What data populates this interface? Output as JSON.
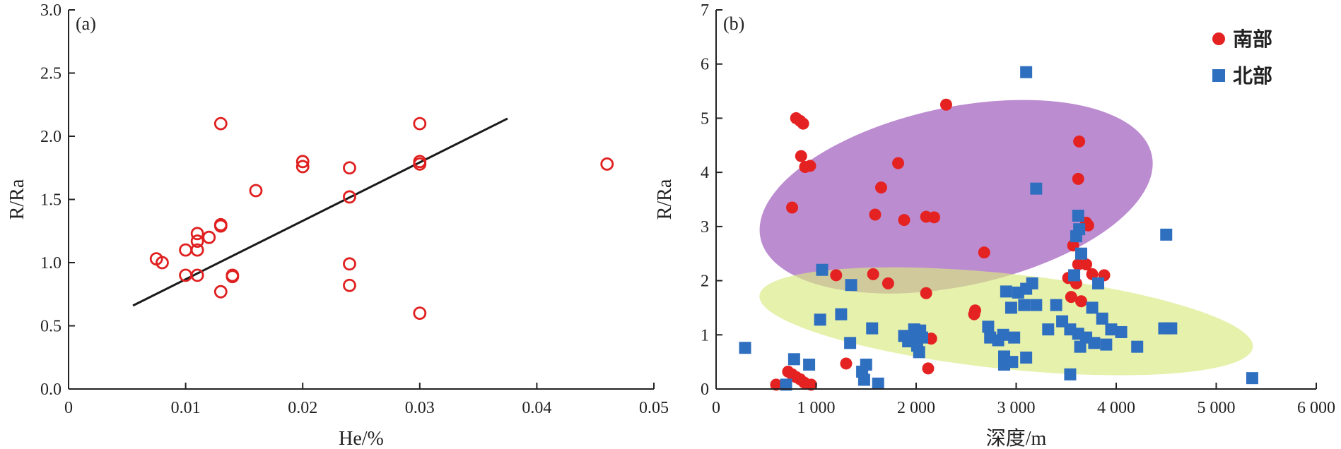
{
  "chart_data": [
    {
      "type": "scatter",
      "panel_label": "(a)",
      "xlabel": "He/%",
      "ylabel": "R/Ra",
      "xlim": [
        0,
        0.05
      ],
      "ylim": [
        0,
        3.0
      ],
      "xticks": [
        {
          "value": 0,
          "label": "0"
        },
        {
          "value": 0.01,
          "label": "0.01"
        },
        {
          "value": 0.02,
          "label": "0.02"
        },
        {
          "value": 0.03,
          "label": "0.03"
        },
        {
          "value": 0.04,
          "label": "0.04"
        },
        {
          "value": 0.05,
          "label": "0.05"
        }
      ],
      "yticks": [
        {
          "value": 0,
          "label": "0.0"
        },
        {
          "value": 0.5,
          "label": "0.5"
        },
        {
          "value": 1.0,
          "label": "1.0"
        },
        {
          "value": 1.5,
          "label": "1.5"
        },
        {
          "value": 2.0,
          "label": "2.0"
        },
        {
          "value": 2.5,
          "label": "2.5"
        },
        {
          "value": 3.0,
          "label": "3.0"
        }
      ],
      "marker_color": "#e02020",
      "points": [
        [
          0.0075,
          1.03
        ],
        [
          0.008,
          1.0
        ],
        [
          0.01,
          1.1
        ],
        [
          0.01,
          0.9
        ],
        [
          0.011,
          1.23
        ],
        [
          0.011,
          1.17
        ],
        [
          0.011,
          1.1
        ],
        [
          0.011,
          0.9
        ],
        [
          0.012,
          1.2
        ],
        [
          0.013,
          1.3
        ],
        [
          0.013,
          1.29
        ],
        [
          0.013,
          2.1
        ],
        [
          0.013,
          0.77
        ],
        [
          0.014,
          0.9
        ],
        [
          0.014,
          0.89
        ],
        [
          0.016,
          1.57
        ],
        [
          0.02,
          1.8
        ],
        [
          0.02,
          1.76
        ],
        [
          0.024,
          1.75
        ],
        [
          0.024,
          1.52
        ],
        [
          0.024,
          0.99
        ],
        [
          0.024,
          0.82
        ],
        [
          0.03,
          2.1
        ],
        [
          0.03,
          1.8
        ],
        [
          0.03,
          1.78
        ],
        [
          0.03,
          0.6
        ],
        [
          0.046,
          1.78
        ]
      ],
      "trendline": {
        "x": [
          0.0055,
          0.0375
        ],
        "y": [
          0.66,
          2.14
        ],
        "color": "#1a1a1a"
      }
    },
    {
      "type": "scatter",
      "panel_label": "(b)",
      "xlabel": "深度/m",
      "ylabel": "R/Ra",
      "xlim": [
        0,
        6000
      ],
      "ylim": [
        0,
        7
      ],
      "xticks": [
        {
          "value": 0,
          "label": "0"
        },
        {
          "value": 1000,
          "label": "1 000"
        },
        {
          "value": 2000,
          "label": "2 000"
        },
        {
          "value": 3000,
          "label": "3 000"
        },
        {
          "value": 4000,
          "label": "4 000"
        },
        {
          "value": 5000,
          "label": "5 000"
        },
        {
          "value": 6000,
          "label": "6 000"
        }
      ],
      "yticks": [
        {
          "value": 0,
          "label": "0"
        },
        {
          "value": 1,
          "label": "1"
        },
        {
          "value": 2,
          "label": "2"
        },
        {
          "value": 3,
          "label": "3"
        },
        {
          "value": 4,
          "label": "4"
        },
        {
          "value": 5,
          "label": "5"
        },
        {
          "value": 6,
          "label": "6"
        },
        {
          "value": 7,
          "label": "7"
        }
      ],
      "legend_position": "top-right",
      "regions": [
        {
          "color": "#a566c2",
          "opacity": 0.75,
          "cx": 2400,
          "cy": 3.55,
          "rx": 2000,
          "ry": 1.65,
          "rotate_deg": 12
        },
        {
          "color": "#d8ea80",
          "opacity": 0.65,
          "cx": 2900,
          "cy": 1.25,
          "rx": 2480,
          "ry": 0.88,
          "rotate_deg": -6
        }
      ],
      "series": [
        {
          "name": "南部",
          "marker": "circle",
          "color": "#e52222",
          "points": [
            [
              800,
              5.0
            ],
            [
              840,
              4.95
            ],
            [
              870,
              4.9
            ],
            [
              850,
              4.3
            ],
            [
              890,
              4.1
            ],
            [
              940,
              4.12
            ],
            [
              760,
              3.35
            ],
            [
              1200,
              2.1
            ],
            [
              1570,
              2.12
            ],
            [
              1590,
              3.22
            ],
            [
              1650,
              3.72
            ],
            [
              1820,
              4.17
            ],
            [
              1880,
              3.12
            ],
            [
              2100,
              3.18
            ],
            [
              2180,
              3.17
            ],
            [
              2300,
              5.25
            ],
            [
              2680,
              2.52
            ],
            [
              3630,
              4.57
            ],
            [
              3620,
              3.88
            ],
            [
              3700,
              3.07
            ],
            [
              3720,
              3.02
            ],
            [
              3570,
              2.65
            ],
            [
              3620,
              2.3
            ],
            [
              3700,
              2.3
            ],
            [
              3760,
              2.12
            ],
            [
              3880,
              2.1
            ],
            [
              3520,
              2.05
            ],
            [
              3600,
              1.95
            ],
            [
              3550,
              1.7
            ],
            [
              3650,
              1.62
            ],
            [
              1720,
              1.95
            ],
            [
              2100,
              1.77
            ],
            [
              2150,
              0.93
            ],
            [
              2120,
              0.38
            ],
            [
              2590,
              1.45
            ],
            [
              2580,
              1.38
            ],
            [
              1300,
              0.47
            ],
            [
              600,
              0.08
            ],
            [
              720,
              0.32
            ],
            [
              760,
              0.27
            ],
            [
              800,
              0.22
            ],
            [
              840,
              0.18
            ],
            [
              880,
              0.12
            ],
            [
              950,
              0.08
            ]
          ]
        },
        {
          "name": "北部",
          "marker": "square",
          "color": "#2f6fc0",
          "points": [
            [
              3100,
              5.85
            ],
            [
              3200,
              3.7
            ],
            [
              3620,
              3.2
            ],
            [
              3630,
              2.95
            ],
            [
              3600,
              2.82
            ],
            [
              3650,
              2.5
            ],
            [
              4500,
              2.85
            ],
            [
              1060,
              2.2
            ],
            [
              1350,
              1.92
            ],
            [
              290,
              0.76
            ],
            [
              700,
              0.08
            ],
            [
              1480,
              0.17
            ],
            [
              1620,
              0.1
            ],
            [
              3540,
              0.27
            ],
            [
              4210,
              0.78
            ],
            [
              5360,
              0.2
            ],
            [
              3640,
              0.78
            ],
            [
              4550,
              1.12
            ],
            [
              4480,
              1.12
            ],
            [
              4050,
              1.05
            ],
            [
              3950,
              1.1
            ],
            [
              3860,
              1.3
            ],
            [
              3760,
              1.5
            ],
            [
              3820,
              1.95
            ],
            [
              3900,
              0.82
            ],
            [
              3780,
              0.85
            ],
            [
              3700,
              0.95
            ],
            [
              3620,
              1.02
            ],
            [
              3540,
              1.1
            ],
            [
              3460,
              1.25
            ],
            [
              3400,
              1.55
            ],
            [
              3320,
              1.1
            ],
            [
              3200,
              1.55
            ],
            [
              3160,
              1.95
            ],
            [
              3100,
              1.85
            ],
            [
              3020,
              1.78
            ],
            [
              2900,
              1.8
            ],
            [
              3080,
              1.55
            ],
            [
              2950,
              1.5
            ],
            [
              2870,
              1.0
            ],
            [
              2980,
              0.95
            ],
            [
              2820,
              0.9
            ],
            [
              2740,
              0.95
            ],
            [
              2720,
              1.15
            ],
            [
              2880,
              0.6
            ],
            [
              2960,
              0.5
            ],
            [
              3100,
              0.58
            ],
            [
              2880,
              0.45
            ],
            [
              1980,
              1.1
            ],
            [
              2040,
              1.08
            ],
            [
              2060,
              0.95
            ],
            [
              2000,
              0.9
            ],
            [
              1920,
              0.88
            ],
            [
              1880,
              0.98
            ],
            [
              2010,
              0.8
            ],
            [
              2030,
              0.68
            ],
            [
              1560,
              1.12
            ],
            [
              1250,
              1.38
            ],
            [
              1040,
              1.28
            ],
            [
              1340,
              0.85
            ],
            [
              1500,
              0.45
            ],
            [
              1460,
              0.32
            ],
            [
              780,
              0.55
            ],
            [
              930,
              0.45
            ],
            [
              3580,
              2.1
            ]
          ]
        }
      ]
    }
  ]
}
